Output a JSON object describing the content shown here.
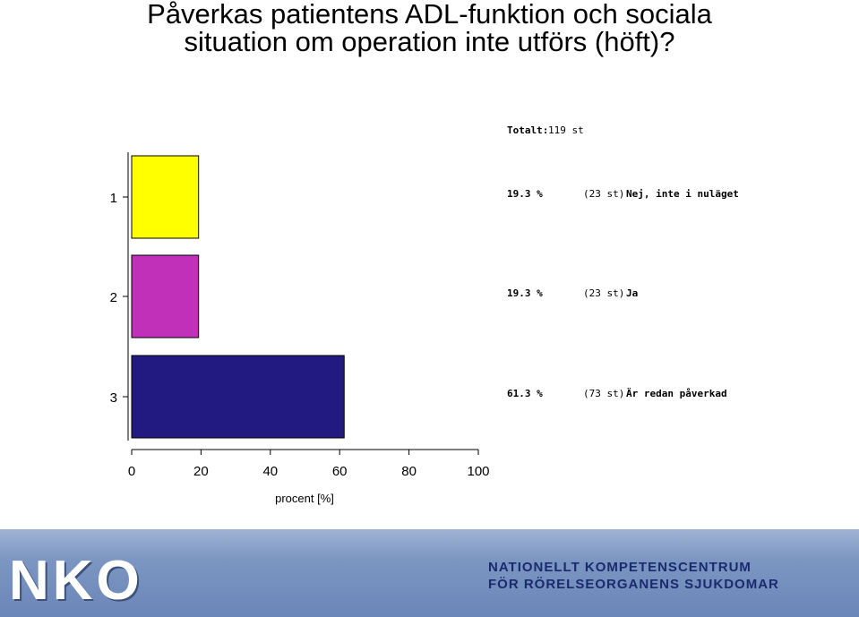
{
  "slide": {
    "title_line1": "Påverkas patientens ADL-funktion och sociala",
    "title_line2": "situation om operation inte utförs (höft)?"
  },
  "chart_data": {
    "type": "bar",
    "orientation": "horizontal",
    "categories": [
      "1",
      "2",
      "3"
    ],
    "values": [
      19.3,
      19.3,
      61.3
    ],
    "counts": [
      "(23 st)",
      "(23 st)",
      "(73 st)"
    ],
    "percent_labels": [
      "19.3 %",
      "19.3 %",
      "61.3 %"
    ],
    "answers": [
      "Nej, inte i nuläget",
      "Ja",
      "Är redan påverkad"
    ],
    "colors": [
      "#ffff00",
      "#c030b8",
      "#221a80"
    ],
    "xlim": [
      0,
      100
    ],
    "xticks": [
      0,
      20,
      40,
      60,
      80,
      100
    ],
    "xlabel": "procent [%]",
    "total_label": "Totalt:",
    "total_value": "119 st"
  },
  "footer": {
    "logo": "NKO",
    "line1": "NATIONELLT KOMPETENSCENTRUM",
    "line2": "FÖR RÖRELSEORGANENS SJUKDOMAR",
    "background": "#7c96c2"
  }
}
